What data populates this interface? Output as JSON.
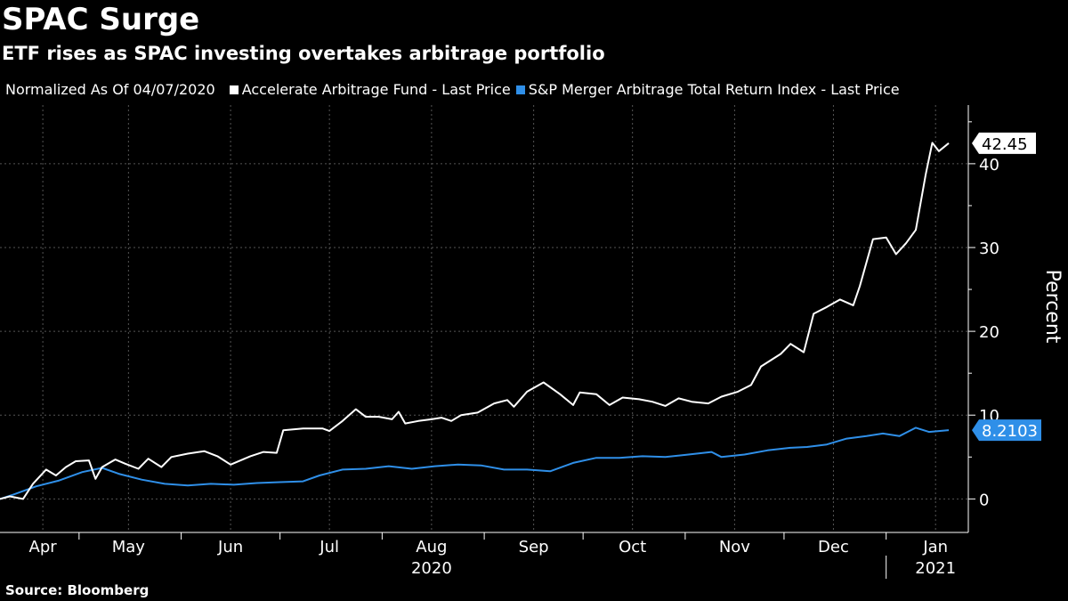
{
  "title": "SPAC Surge",
  "subtitle": "ETF rises as SPAC investing overtakes arbitrage portfolio",
  "legend": {
    "note": "Normalized As Of 04/07/2020"
  },
  "source": "Source: Bloomberg",
  "colors": {
    "background": "#000000",
    "fund": "#ffffff",
    "index": "#2f8fe8",
    "grid": "#555555"
  },
  "chart_data": {
    "type": "line",
    "ylabel": "Percent",
    "ylim": [
      -4,
      47
    ],
    "yticks": [
      0,
      10,
      20,
      30,
      40
    ],
    "x_date_range": [
      "2020-04-07",
      "2021-01-20"
    ],
    "month_labels": [
      {
        "label": "Apr",
        "date": "2020-04-20"
      },
      {
        "label": "May",
        "date": "2020-05-16"
      },
      {
        "label": "Jun",
        "date": "2020-06-16"
      },
      {
        "label": "Jul",
        "date": "2020-07-16"
      },
      {
        "label": "Aug",
        "date": "2020-08-16"
      },
      {
        "label": "Sep",
        "date": "2020-09-16"
      },
      {
        "label": "Oct",
        "date": "2020-10-16"
      },
      {
        "label": "Nov",
        "date": "2020-11-16"
      },
      {
        "label": "Dec",
        "date": "2020-12-16"
      },
      {
        "label": "Jan",
        "date": "2021-01-16"
      }
    ],
    "month_boundaries": [
      "2020-05-01",
      "2020-06-01",
      "2020-07-01",
      "2020-08-01",
      "2020-09-01",
      "2020-10-01",
      "2020-11-01",
      "2020-12-01",
      "2021-01-01"
    ],
    "year_labels": [
      {
        "label": "2020",
        "date": "2020-08-16"
      },
      {
        "label": "2021",
        "date": "2021-01-16"
      }
    ],
    "year_boundary": "2021-01-01",
    "series": [
      {
        "name": "Accelerate Arbitrage Fund - Last Price",
        "last_label": "42.45",
        "points": [
          [
            "2020-04-07",
            0
          ],
          [
            "2020-04-10",
            0.3
          ],
          [
            "2020-04-14",
            0
          ],
          [
            "2020-04-17",
            1.8
          ],
          [
            "2020-04-21",
            3.5
          ],
          [
            "2020-04-24",
            2.8
          ],
          [
            "2020-04-27",
            3.8
          ],
          [
            "2020-04-30",
            4.5
          ],
          [
            "2020-05-04",
            4.6
          ],
          [
            "2020-05-06",
            2.4
          ],
          [
            "2020-05-08",
            3.8
          ],
          [
            "2020-05-12",
            4.7
          ],
          [
            "2020-05-15",
            4.2
          ],
          [
            "2020-05-19",
            3.6
          ],
          [
            "2020-05-22",
            4.8
          ],
          [
            "2020-05-26",
            3.8
          ],
          [
            "2020-05-29",
            5.0
          ],
          [
            "2020-06-03",
            5.4
          ],
          [
            "2020-06-08",
            5.7
          ],
          [
            "2020-06-12",
            5.1
          ],
          [
            "2020-06-16",
            4.1
          ],
          [
            "2020-06-22",
            5.1
          ],
          [
            "2020-06-26",
            5.6
          ],
          [
            "2020-06-30",
            5.5
          ],
          [
            "2020-07-02",
            8.2
          ],
          [
            "2020-07-08",
            8.4
          ],
          [
            "2020-07-14",
            8.4
          ],
          [
            "2020-07-16",
            8.1
          ],
          [
            "2020-07-20",
            9.3
          ],
          [
            "2020-07-24",
            10.7
          ],
          [
            "2020-07-27",
            9.8
          ],
          [
            "2020-07-31",
            9.8
          ],
          [
            "2020-08-04",
            9.5
          ],
          [
            "2020-08-06",
            10.4
          ],
          [
            "2020-08-08",
            9.0
          ],
          [
            "2020-08-12",
            9.3
          ],
          [
            "2020-08-16",
            9.5
          ],
          [
            "2020-08-19",
            9.7
          ],
          [
            "2020-08-22",
            9.3
          ],
          [
            "2020-08-25",
            10.0
          ],
          [
            "2020-08-30",
            10.3
          ],
          [
            "2020-09-04",
            11.4
          ],
          [
            "2020-09-08",
            11.8
          ],
          [
            "2020-09-10",
            11.0
          ],
          [
            "2020-09-14",
            12.8
          ],
          [
            "2020-09-19",
            13.9
          ],
          [
            "2020-09-24",
            12.5
          ],
          [
            "2020-09-28",
            11.2
          ],
          [
            "2020-09-30",
            12.7
          ],
          [
            "2020-10-05",
            12.5
          ],
          [
            "2020-10-09",
            11.2
          ],
          [
            "2020-10-13",
            12.1
          ],
          [
            "2020-10-18",
            11.9
          ],
          [
            "2020-10-22",
            11.6
          ],
          [
            "2020-10-26",
            11.1
          ],
          [
            "2020-10-30",
            12.0
          ],
          [
            "2020-11-03",
            11.6
          ],
          [
            "2020-11-08",
            11.4
          ],
          [
            "2020-11-12",
            12.2
          ],
          [
            "2020-11-17",
            12.8
          ],
          [
            "2020-11-21",
            13.6
          ],
          [
            "2020-11-24",
            15.8
          ],
          [
            "2020-11-30",
            17.3
          ],
          [
            "2020-12-03",
            18.5
          ],
          [
            "2020-12-07",
            17.5
          ],
          [
            "2020-12-10",
            22.1
          ],
          [
            "2020-12-14",
            22.9
          ],
          [
            "2020-12-18",
            23.8
          ],
          [
            "2020-12-22",
            23.1
          ],
          [
            "2020-12-24",
            25.4
          ],
          [
            "2020-12-28",
            31.0
          ],
          [
            "2021-01-01",
            31.2
          ],
          [
            "2021-01-04",
            29.2
          ],
          [
            "2021-01-07",
            30.5
          ],
          [
            "2021-01-10",
            32.1
          ],
          [
            "2021-01-13",
            38.7
          ],
          [
            "2021-01-15",
            42.5
          ],
          [
            "2021-01-17",
            41.5
          ],
          [
            "2021-01-20",
            42.45
          ]
        ]
      },
      {
        "name": "S&P Merger Arbitrage Total Return Index - Last Price",
        "last_label": "8.2103",
        "points": [
          [
            "2020-04-07",
            0
          ],
          [
            "2020-04-11",
            0.5
          ],
          [
            "2020-04-18",
            1.5
          ],
          [
            "2020-04-25",
            2.2
          ],
          [
            "2020-05-02",
            3.2
          ],
          [
            "2020-05-08",
            3.7
          ],
          [
            "2020-05-13",
            3.0
          ],
          [
            "2020-05-20",
            2.3
          ],
          [
            "2020-05-27",
            1.8
          ],
          [
            "2020-06-03",
            1.6
          ],
          [
            "2020-06-10",
            1.8
          ],
          [
            "2020-06-17",
            1.7
          ],
          [
            "2020-06-24",
            1.9
          ],
          [
            "2020-07-01",
            2.0
          ],
          [
            "2020-07-08",
            2.1
          ],
          [
            "2020-07-13",
            2.8
          ],
          [
            "2020-07-20",
            3.5
          ],
          [
            "2020-07-27",
            3.6
          ],
          [
            "2020-08-03",
            3.9
          ],
          [
            "2020-08-10",
            3.6
          ],
          [
            "2020-08-17",
            3.9
          ],
          [
            "2020-08-24",
            4.1
          ],
          [
            "2020-08-31",
            4.0
          ],
          [
            "2020-09-07",
            3.5
          ],
          [
            "2020-09-14",
            3.5
          ],
          [
            "2020-09-21",
            3.3
          ],
          [
            "2020-09-28",
            4.3
          ],
          [
            "2020-10-05",
            4.9
          ],
          [
            "2020-10-12",
            4.9
          ],
          [
            "2020-10-19",
            5.1
          ],
          [
            "2020-10-26",
            5.0
          ],
          [
            "2020-11-02",
            5.3
          ],
          [
            "2020-11-09",
            5.6
          ],
          [
            "2020-11-12",
            5.0
          ],
          [
            "2020-11-19",
            5.3
          ],
          [
            "2020-11-26",
            5.8
          ],
          [
            "2020-12-03",
            6.1
          ],
          [
            "2020-12-08",
            6.2
          ],
          [
            "2020-12-14",
            6.5
          ],
          [
            "2020-12-20",
            7.2
          ],
          [
            "2020-12-26",
            7.5
          ],
          [
            "2020-12-31",
            7.8
          ],
          [
            "2021-01-05",
            7.5
          ],
          [
            "2021-01-10",
            8.5
          ],
          [
            "2021-01-14",
            8.0
          ],
          [
            "2021-01-20",
            8.2103
          ]
        ]
      }
    ]
  }
}
